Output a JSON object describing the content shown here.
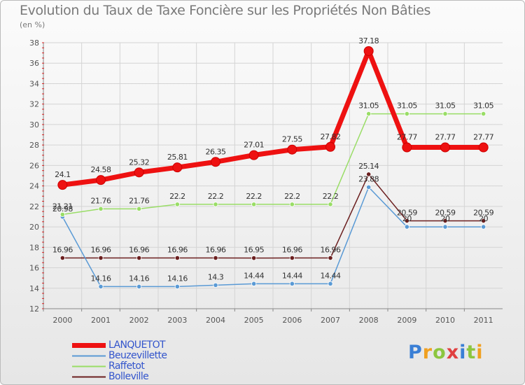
{
  "title": "Evolution du Taux de Taxe Foncière sur les Propriétés Non Bâties",
  "subtitle": "(en %)",
  "brand": {
    "letters": [
      "P",
      "r",
      "o",
      "x",
      "i",
      "t",
      "i"
    ],
    "colors": [
      "#3a7fd5",
      "#f0a020",
      "#8cc63f",
      "#e04040",
      "#3a7fd5",
      "#8cc63f",
      "#f0a020"
    ]
  },
  "chart_data": {
    "type": "line",
    "title": "Evolution du Taux de Taxe Foncière sur les Propriétés Non Bâties",
    "ylabel": "(en %)",
    "xlabel": "",
    "categories": [
      "2000",
      "2001",
      "2002",
      "2003",
      "2004",
      "2005",
      "2006",
      "2007",
      "2008",
      "2009",
      "2010",
      "2011"
    ],
    "ylim": [
      12,
      38
    ],
    "yticks": [
      12,
      14,
      16,
      18,
      20,
      22,
      24,
      26,
      28,
      30,
      32,
      34,
      36,
      38
    ],
    "grid": true,
    "series": [
      {
        "name": "Bolleville",
        "color": "#6b1f1f",
        "values": [
          16.96,
          16.96,
          16.96,
          16.96,
          16.96,
          16.95,
          16.96,
          16.96,
          25.14,
          20.59,
          20.59,
          20.59
        ],
        "labels": [
          "16.96",
          "16.96",
          "16.96",
          "16.96",
          "16.96",
          "16.95",
          "16.96",
          "16.96",
          "25.14",
          "20.59",
          "20.59",
          "20.59"
        ]
      },
      {
        "name": "Beuzevillette",
        "color": "#5a9ad5",
        "values": [
          20.98,
          14.16,
          14.16,
          14.16,
          14.3,
          14.44,
          14.44,
          14.44,
          23.88,
          20,
          20,
          20
        ],
        "labels": [
          "20.98",
          "14.16",
          "14.16",
          "14.16",
          "14.3",
          "14.44",
          "14.44",
          "14.44",
          "23.88",
          "20",
          "20",
          "20"
        ]
      },
      {
        "name": "Raffetot",
        "color": "#99dd66",
        "values": [
          21.21,
          21.76,
          21.76,
          22.2,
          22.2,
          22.2,
          22.2,
          22.2,
          31.05,
          31.05,
          31.05,
          31.05
        ],
        "labels": [
          "21.21",
          "21.76",
          "21.76",
          "22.2",
          "22.2",
          "22.2",
          "22.2",
          "22.2",
          "31.05",
          "31.05",
          "31.05",
          "31.05"
        ]
      },
      {
        "name": "LANQUETOT",
        "color": "#ee1111",
        "values": [
          24.1,
          24.58,
          25.32,
          25.81,
          26.35,
          27.01,
          27.55,
          27.82,
          37.18,
          27.77,
          27.77,
          27.77
        ],
        "labels": [
          "24.1",
          "24.58",
          "25.32",
          "25.81",
          "26.35",
          "27.01",
          "27.55",
          "27.82",
          "37.18",
          "27.77",
          "27.77",
          "27.77"
        ]
      }
    ],
    "legend_order": [
      "LANQUETOT",
      "Beuzevillette",
      "Raffetot",
      "Bolleville"
    ]
  }
}
